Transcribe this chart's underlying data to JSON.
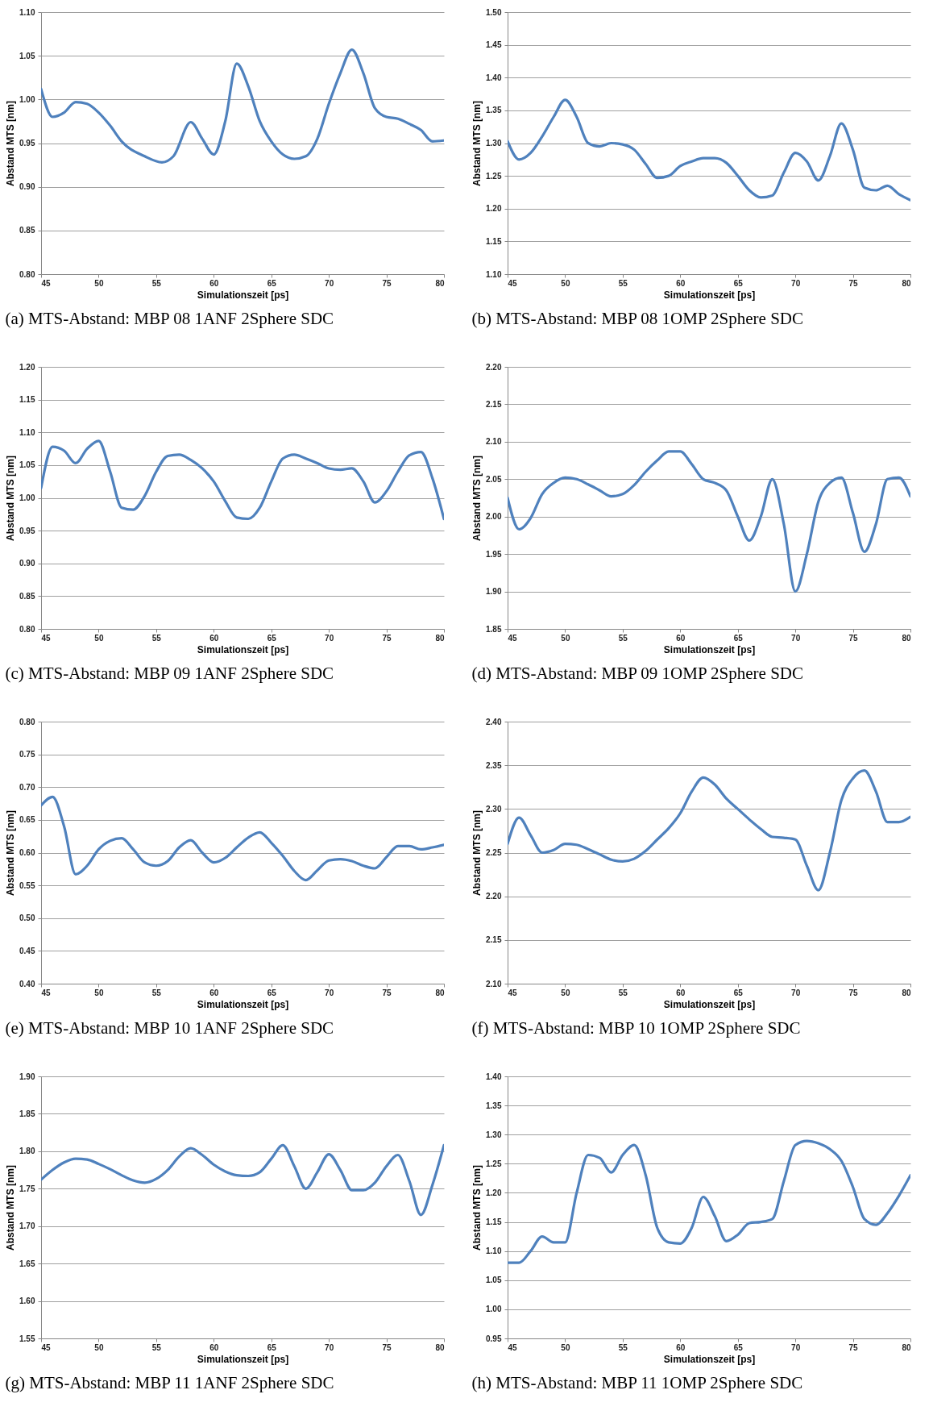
{
  "chart_data": [
    {
      "type": "line",
      "title": "(a) MTS-Abstand: MBP 08 1ANF 2Sphere SDC",
      "xlabel": "Simulationszeit [ps]",
      "ylabel": "Abstand MTS [nm]",
      "color": "#4f81bd",
      "grid": "y",
      "xlim": [
        45,
        80
      ],
      "xticks": [
        45,
        50,
        55,
        60,
        65,
        70,
        75,
        80
      ],
      "ylim": [
        0.8,
        1.1
      ],
      "yticks": [
        {
          "value": 0.8,
          "label": "0.80"
        },
        0.85,
        {
          "value": 0.9,
          "label": "0.90"
        },
        0.95,
        {
          "value": 1.0,
          "label": "1.00"
        },
        1.05,
        {
          "value": 1.1,
          "label": "1.10"
        }
      ],
      "x": [
        45,
        46,
        47,
        48,
        49,
        50,
        51,
        52,
        54,
        55.5,
        56.5,
        58,
        59,
        60,
        61,
        62,
        63,
        64,
        65,
        66,
        67,
        68,
        69,
        70,
        71,
        72,
        73,
        74,
        75,
        76,
        77,
        78,
        79,
        80
      ],
      "values": [
        1.012,
        0.98,
        0.985,
        0.997,
        0.995,
        0.985,
        0.97,
        0.952,
        0.935,
        0.928,
        0.935,
        0.974,
        0.955,
        0.937,
        0.975,
        1.041,
        1.015,
        0.975,
        0.952,
        0.937,
        0.932,
        0.935,
        0.955,
        0.995,
        1.03,
        1.057,
        1.03,
        0.99,
        0.98,
        0.978,
        0.972,
        0.965,
        0.952,
        0.953
      ]
    },
    {
      "type": "line",
      "title": "(b) MTS-Abstand: MBP 08 1OMP 2Sphere SDC",
      "xlabel": "Simulationszeit [ps]",
      "ylabel": "Abstand MTS [nm]",
      "color": "#4f81bd",
      "grid": "y",
      "xlim": [
        45,
        80
      ],
      "xticks": [
        45,
        50,
        55,
        60,
        65,
        70,
        75,
        80
      ],
      "ylim": [
        1.1,
        1.5
      ],
      "yticks": [
        {
          "value": 1.1,
          "label": "1.10"
        },
        1.15,
        {
          "value": 1.2,
          "label": "1.20"
        },
        1.25,
        {
          "value": 1.3,
          "label": "1.30"
        },
        1.35,
        {
          "value": 1.4,
          "label": "1.40"
        },
        1.45,
        {
          "value": 1.5,
          "label": "1.50"
        }
      ],
      "x": [
        45,
        46,
        47,
        48,
        49,
        50,
        51,
        52,
        53,
        54,
        55,
        56,
        57,
        58,
        59,
        60,
        61,
        62,
        63,
        64,
        65,
        66,
        67,
        68,
        69,
        70,
        71,
        72,
        73,
        74,
        75,
        76,
        77,
        78,
        79,
        80
      ],
      "values": [
        1.303,
        1.275,
        1.285,
        1.31,
        1.34,
        1.366,
        1.34,
        1.3,
        1.295,
        1.3,
        1.298,
        1.29,
        1.268,
        1.247,
        1.25,
        1.265,
        1.272,
        1.277,
        1.277,
        1.27,
        1.25,
        1.228,
        1.217,
        1.22,
        1.255,
        1.285,
        1.272,
        1.243,
        1.28,
        1.33,
        1.29,
        1.232,
        1.228,
        1.235,
        1.222,
        1.213
      ]
    },
    {
      "type": "line",
      "title": "(c) MTS-Abstand: MBP 09 1ANF 2Sphere SDC",
      "xlabel": "Simulationszeit [ps]",
      "ylabel": "Abstand MTS [nm]",
      "color": "#4f81bd",
      "grid": "y",
      "xlim": [
        45,
        80
      ],
      "xticks": [
        45,
        50,
        55,
        60,
        65,
        70,
        75,
        80
      ],
      "ylim": [
        0.8,
        1.2
      ],
      "yticks": [
        {
          "value": 0.8,
          "label": "0.80"
        },
        0.85,
        {
          "value": 0.9,
          "label": "0.90"
        },
        0.95,
        {
          "value": 1.0,
          "label": "1.00"
        },
        1.05,
        {
          "value": 1.1,
          "label": "1.10"
        },
        1.15,
        {
          "value": 1.2,
          "label": "1.20"
        }
      ],
      "x": [
        45,
        46,
        47,
        48,
        49,
        50,
        51,
        52,
        53,
        54,
        55,
        56,
        57,
        58,
        59,
        60,
        61,
        62,
        63,
        64,
        65,
        66,
        67,
        68,
        69,
        70,
        71,
        72,
        73,
        74,
        75,
        76,
        77,
        78,
        79,
        80
      ],
      "values": [
        1.015,
        1.078,
        1.072,
        1.053,
        1.075,
        1.087,
        1.04,
        0.985,
        0.982,
        1.003,
        1.04,
        1.064,
        1.066,
        1.058,
        1.045,
        1.025,
        0.995,
        0.97,
        0.968,
        0.985,
        1.025,
        1.06,
        1.066,
        1.06,
        1.053,
        1.045,
        1.043,
        1.045,
        1.025,
        0.993,
        1.01,
        1.04,
        1.065,
        1.07,
        1.03,
        0.968
      ]
    },
    {
      "type": "line",
      "title": "(d) MTS-Abstand: MBP 09 1OMP 2Sphere SDC",
      "xlabel": "Simulationszeit [ps]",
      "ylabel": "Abstand MTS [nm]",
      "color": "#4f81bd",
      "grid": "y",
      "xlim": [
        45,
        80
      ],
      "xticks": [
        45,
        50,
        55,
        60,
        65,
        70,
        75,
        80
      ],
      "ylim": [
        1.85,
        2.2
      ],
      "yticks": [
        1.85,
        {
          "value": 1.9,
          "label": "1.90"
        },
        1.95,
        {
          "value": 2.0,
          "label": "2.00"
        },
        2.05,
        {
          "value": 2.1,
          "label": "2.10"
        },
        2.15,
        {
          "value": 2.2,
          "label": "2.20"
        }
      ],
      "x": [
        45,
        46,
        47,
        48,
        49,
        50,
        51,
        52,
        53,
        54,
        55,
        56,
        57,
        58,
        59,
        60,
        61,
        62,
        63,
        64,
        65,
        66,
        67,
        68,
        69,
        70,
        71,
        72,
        73,
        74,
        75,
        76,
        77,
        78,
        79,
        80
      ],
      "values": [
        2.025,
        1.983,
        1.998,
        2.03,
        2.045,
        2.052,
        2.05,
        2.043,
        2.035,
        2.027,
        2.03,
        2.042,
        2.06,
        2.075,
        2.087,
        2.087,
        2.07,
        2.05,
        2.045,
        2.035,
        2.0,
        1.968,
        2.0,
        2.05,
        1.99,
        1.9,
        1.95,
        2.02,
        2.045,
        2.052,
        2.005,
        1.953,
        1.99,
        2.05,
        2.052,
        2.027
      ]
    },
    {
      "type": "line",
      "title": "(e) MTS-Abstand: MBP 10 1ANF 2Sphere SDC",
      "xlabel": "Simulationszeit [ps]",
      "ylabel": "Abstand MTS [nm]",
      "color": "#4f81bd",
      "grid": "y",
      "xlim": [
        45,
        80
      ],
      "xticks": [
        45,
        50,
        55,
        60,
        65,
        70,
        75,
        80
      ],
      "ylim": [
        0.4,
        0.8
      ],
      "yticks": [
        {
          "value": 0.4,
          "label": "0.40"
        },
        0.45,
        {
          "value": 0.5,
          "label": "0.50"
        },
        0.55,
        {
          "value": 0.6,
          "label": "0.60"
        },
        0.65,
        {
          "value": 0.7,
          "label": "0.70"
        },
        0.75,
        {
          "value": 0.8,
          "label": "0.80"
        }
      ],
      "x": [
        45,
        46,
        47,
        48,
        49,
        50,
        51,
        52,
        53,
        54,
        55,
        56,
        57,
        58,
        59,
        60,
        61,
        62,
        63,
        64,
        65,
        66,
        67,
        68,
        69,
        70,
        71,
        72,
        73,
        74,
        75,
        76,
        77,
        78,
        79,
        80
      ],
      "values": [
        0.672,
        0.685,
        0.64,
        0.567,
        0.58,
        0.605,
        0.618,
        0.622,
        0.605,
        0.585,
        0.58,
        0.587,
        0.608,
        0.619,
        0.6,
        0.585,
        0.592,
        0.608,
        0.623,
        0.631,
        0.615,
        0.595,
        0.572,
        0.558,
        0.573,
        0.588,
        0.59,
        0.587,
        0.58,
        0.576,
        0.593,
        0.61,
        0.61,
        0.605,
        0.608,
        0.612
      ]
    },
    {
      "type": "line",
      "title": "(f) MTS-Abstand: MBP 10 1OMP 2Sphere SDC",
      "xlabel": "Simulationszeit [ps]",
      "ylabel": "Abstand MTS [nm]",
      "color": "#4f81bd",
      "grid": "y",
      "xlim": [
        45,
        80
      ],
      "xticks": [
        45,
        50,
        55,
        60,
        65,
        70,
        75,
        80
      ],
      "ylim": [
        2.1,
        2.4
      ],
      "yticks": [
        {
          "value": 2.1,
          "label": "2.10"
        },
        2.15,
        {
          "value": 2.2,
          "label": "2.20"
        },
        2.25,
        {
          "value": 2.3,
          "label": "2.30"
        },
        2.35,
        {
          "value": 2.4,
          "label": "2.40"
        }
      ],
      "x": [
        45,
        46,
        47,
        48,
        49,
        50,
        51,
        52,
        53,
        54,
        55,
        56,
        57,
        58,
        59,
        60,
        61,
        62,
        63,
        64,
        65,
        66,
        67,
        68,
        69,
        70,
        71,
        72,
        73,
        74,
        75,
        76,
        77,
        78,
        79,
        80
      ],
      "values": [
        2.26,
        2.29,
        2.27,
        2.25,
        2.253,
        2.26,
        2.259,
        2.254,
        2.248,
        2.242,
        2.24,
        2.243,
        2.252,
        2.265,
        2.278,
        2.295,
        2.32,
        2.336,
        2.328,
        2.312,
        2.3,
        2.288,
        2.277,
        2.268,
        2.267,
        2.265,
        2.235,
        2.207,
        2.25,
        2.31,
        2.335,
        2.344,
        2.32,
        2.285,
        2.285,
        2.291
      ]
    },
    {
      "type": "line",
      "title": "(g) MTS-Abstand: MBP 11 1ANF 2Sphere SDC",
      "xlabel": "Simulationszeit [ps]",
      "ylabel": "Abstand MTS [nm]",
      "color": "#4f81bd",
      "grid": "y",
      "xlim": [
        45,
        80
      ],
      "xticks": [
        45,
        50,
        55,
        60,
        65,
        70,
        75,
        80
      ],
      "ylim": [
        1.55,
        1.9
      ],
      "yticks": [
        1.55,
        {
          "value": 1.6,
          "label": "1.60"
        },
        1.65,
        {
          "value": 1.7,
          "label": "1.70"
        },
        1.75,
        {
          "value": 1.8,
          "label": "1.80"
        },
        1.85,
        {
          "value": 1.9,
          "label": "1.90"
        }
      ],
      "x": [
        45,
        46,
        47,
        48,
        49,
        50,
        51,
        52,
        53,
        54,
        55,
        56,
        57,
        58,
        59,
        60,
        61,
        62,
        63,
        64,
        65,
        66,
        67,
        68,
        69,
        70,
        71,
        72,
        73,
        74,
        75,
        76,
        77,
        78,
        79,
        80
      ],
      "values": [
        1.762,
        1.775,
        1.785,
        1.79,
        1.789,
        1.783,
        1.776,
        1.768,
        1.761,
        1.758,
        1.763,
        1.775,
        1.793,
        1.804,
        1.795,
        1.782,
        1.773,
        1.768,
        1.767,
        1.772,
        1.79,
        1.808,
        1.78,
        1.75,
        1.772,
        1.796,
        1.775,
        1.748,
        1.748,
        1.758,
        1.78,
        1.795,
        1.76,
        1.715,
        1.755,
        1.808
      ]
    },
    {
      "type": "line",
      "title": "(h) MTS-Abstand: MBP 11 1OMP 2Sphere SDC",
      "xlabel": "Simulationszeit [ps]",
      "ylabel": "Abstand MTS [nm]",
      "color": "#4f81bd",
      "grid": "y",
      "xlim": [
        45,
        80
      ],
      "xticks": [
        45,
        50,
        55,
        60,
        65,
        70,
        75,
        80
      ],
      "ylim": [
        0.95,
        1.4
      ],
      "yticks": [
        0.95,
        {
          "value": 1.0,
          "label": "1.00"
        },
        1.05,
        {
          "value": 1.1,
          "label": "1.10"
        },
        1.15,
        {
          "value": 1.2,
          "label": "1.20"
        },
        1.25,
        {
          "value": 1.3,
          "label": "1.30"
        },
        1.35,
        {
          "value": 1.4,
          "label": "1.40"
        }
      ],
      "x": [
        45,
        46,
        47,
        48,
        49,
        50,
        51,
        52,
        53,
        54,
        55,
        56,
        57,
        58,
        59,
        60,
        61,
        62,
        63,
        64,
        65,
        66,
        67,
        68,
        69,
        70,
        71,
        72,
        73,
        74,
        75,
        76,
        77,
        78,
        79,
        80
      ],
      "values": [
        1.08,
        1.08,
        1.1,
        1.125,
        1.115,
        1.115,
        1.2,
        1.265,
        1.26,
        1.235,
        1.265,
        1.282,
        1.23,
        1.14,
        1.115,
        1.113,
        1.14,
        1.193,
        1.16,
        1.117,
        1.128,
        1.148,
        1.15,
        1.155,
        1.22,
        1.282,
        1.289,
        1.285,
        1.275,
        1.255,
        1.21,
        1.155,
        1.145,
        1.165,
        1.195,
        1.23
      ]
    }
  ]
}
